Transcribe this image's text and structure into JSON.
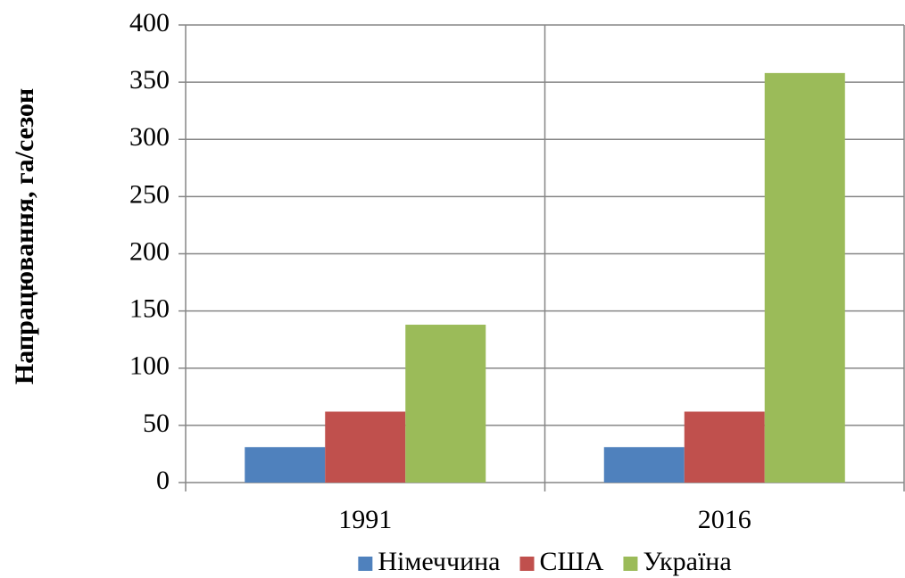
{
  "chart_data": {
    "type": "bar",
    "y_label": "Напрацювання, га/сезон",
    "categories": [
      "1991",
      "2016"
    ],
    "series": [
      {
        "name": "Німеччина",
        "color": "#4f81bd",
        "values": [
          31,
          31
        ]
      },
      {
        "name": "США",
        "color": "#c0504d",
        "values": [
          62,
          62
        ]
      },
      {
        "name": "Україна",
        "color": "#9bbb59",
        "values": [
          138,
          358
        ]
      }
    ],
    "ylim": [
      0,
      400
    ],
    "yticks": [
      0,
      50,
      100,
      150,
      200,
      250,
      300,
      350,
      400
    ],
    "grid": true,
    "legend": "bottom"
  }
}
